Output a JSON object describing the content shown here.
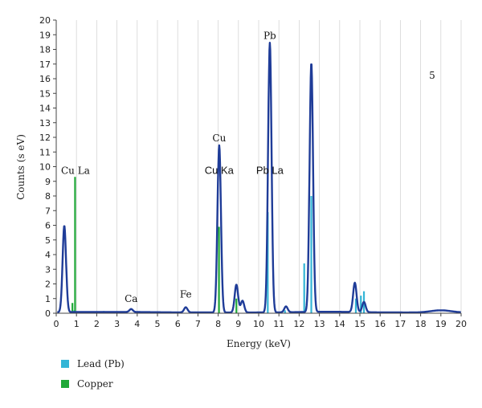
{
  "chart_data": {
    "type": "line",
    "xlabel": "Energy (keV)",
    "ylabel": "Counts (s eV)",
    "xlim": [
      0,
      20
    ],
    "ylim": [
      0,
      20
    ],
    "xticks": [
      0,
      1,
      2,
      3,
      4,
      5,
      6,
      7,
      8,
      9,
      10,
      11,
      12,
      13,
      14,
      15,
      16,
      17,
      18,
      19,
      20
    ],
    "yticks": [
      0,
      1,
      2,
      3,
      4,
      5,
      6,
      7,
      8,
      9,
      10,
      11,
      12,
      13,
      14,
      15,
      16,
      17,
      18,
      19,
      20
    ],
    "grid": "vertical",
    "panel_label": "5",
    "spectrum": {
      "color": "#1f3c98",
      "peaks": [
        {
          "x": 0.4,
          "y": 5.9
        },
        {
          "x": 3.7,
          "y": 0.2
        },
        {
          "x": 6.4,
          "y": 0.35
        },
        {
          "x": 8.05,
          "y": 11.4
        },
        {
          "x": 8.9,
          "y": 1.9
        },
        {
          "x": 9.2,
          "y": 0.8
        },
        {
          "x": 10.55,
          "y": 18.4
        },
        {
          "x": 11.35,
          "y": 0.4
        },
        {
          "x": 12.6,
          "y": 17.0
        },
        {
          "x": 14.75,
          "y": 2.0
        },
        {
          "x": 15.2,
          "y": 0.7
        },
        {
          "x": 19.0,
          "y": 0.15
        }
      ]
    },
    "series": [
      {
        "name": "Lead (Pb)",
        "color": "#33b5d6",
        "bars": [
          {
            "x": 10.45,
            "y": 6.9
          },
          {
            "x": 12.25,
            "y": 3.4
          },
          {
            "x": 12.6,
            "y": 8.0
          },
          {
            "x": 14.8,
            "y": 1.0
          },
          {
            "x": 15.05,
            "y": 1.2
          },
          {
            "x": 15.2,
            "y": 1.5
          },
          {
            "x": 2.35,
            "y": 0.15
          },
          {
            "x": 0.9,
            "y": 0.2
          },
          {
            "x": 11.3,
            "y": 0.2
          }
        ]
      },
      {
        "name": "Copper",
        "color": "#1fa838",
        "bars": [
          {
            "x": 0.93,
            "y": 9.3
          },
          {
            "x": 0.8,
            "y": 0.7
          },
          {
            "x": 8.04,
            "y": 5.9
          },
          {
            "x": 8.9,
            "y": 1.0
          }
        ]
      }
    ],
    "annotations": [
      {
        "text": "Pb",
        "x": 10.55,
        "y": 18.5,
        "style": "serif"
      },
      {
        "text": "Cu",
        "x": 8.05,
        "y": 11.5,
        "style": "serif"
      },
      {
        "text": "Cu La",
        "x": 0.95,
        "y": 9.3,
        "style": "serif"
      },
      {
        "text": "Cu Ka",
        "x": 8.05,
        "y": 9.3,
        "style": "sans"
      },
      {
        "text": "Pb La",
        "x": 10.55,
        "y": 9.3,
        "style": "sans"
      },
      {
        "text": "Ca",
        "x": 3.7,
        "y": 0.55,
        "style": "serif"
      },
      {
        "text": "Fe",
        "x": 6.4,
        "y": 0.85,
        "style": "serif"
      }
    ]
  }
}
